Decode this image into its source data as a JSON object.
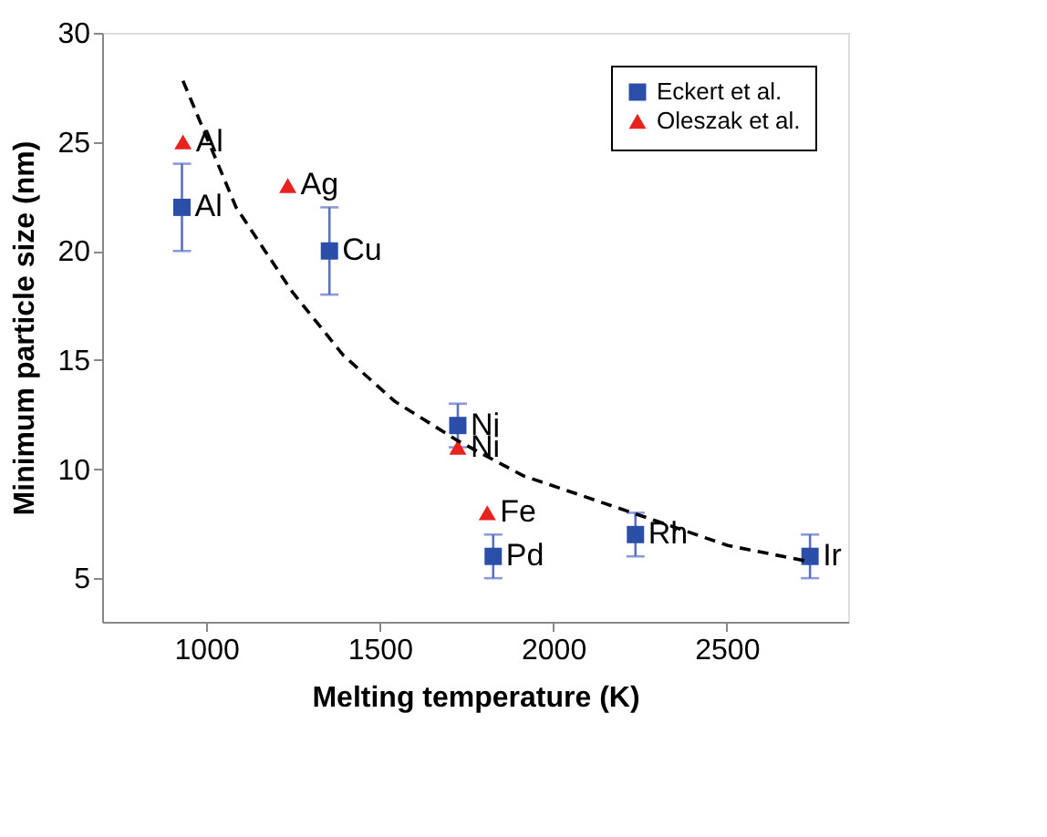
{
  "chart_data": {
    "type": "scatter",
    "xlabel": "Melting temperature (K)",
    "ylabel": "Minimum particle size (nm)",
    "xlim": [
      700,
      2850
    ],
    "xticks": [
      1000,
      1500,
      2000,
      2500
    ],
    "ylim": [
      3,
      30
    ],
    "yticks": [
      5,
      10,
      15,
      20,
      25,
      30
    ],
    "grid": false,
    "legend": "top right",
    "series": [
      {
        "name": "Eckert et al.",
        "marker": "square",
        "color": "#2b4ea8",
        "x": [
          930,
          1355,
          1725,
          1827,
          2237,
          2740
        ],
        "values": [
          22,
          20,
          12,
          6,
          7,
          6
        ],
        "errors": [
          2,
          2,
          1,
          1,
          1,
          1
        ]
      },
      {
        "name": "Oleszak et al.",
        "marker": "triangle",
        "color": "#e8231f",
        "x": [
          933,
          1235,
          1725,
          1810
        ],
        "values": [
          25,
          23,
          11,
          8
        ]
      },
      {
        "type": "line",
        "marker": "none",
        "line_style": "dashed",
        "color": "#000000",
        "x": [
          933,
          1086,
          1249,
          1396,
          1544,
          1725,
          1913,
          2135,
          2283,
          2503,
          2725
        ],
        "values": [
          27.8,
          22,
          18.1,
          15.2,
          13.1,
          11.3,
          9.7,
          8.5,
          7.7,
          6.5,
          5.8
        ]
      }
    ],
    "annotations": [
      {
        "text": "Al",
        "x": 930,
        "y": 22
      },
      {
        "text": "Cu",
        "x": 1355,
        "y": 20
      },
      {
        "text": "Ni",
        "x": 1725,
        "y": 12
      },
      {
        "text": "Pd",
        "x": 1827,
        "y": 6
      },
      {
        "text": "Rh",
        "x": 2237,
        "y": 7
      },
      {
        "text": "Ir",
        "x": 2740,
        "y": 6
      },
      {
        "text": "Al",
        "x": 933,
        "y": 25
      },
      {
        "text": "Ag",
        "x": 1235,
        "y": 23
      },
      {
        "text": "Ni",
        "x": 1725,
        "y": 11
      },
      {
        "text": "Fe",
        "x": 1810,
        "y": 8
      }
    ]
  }
}
